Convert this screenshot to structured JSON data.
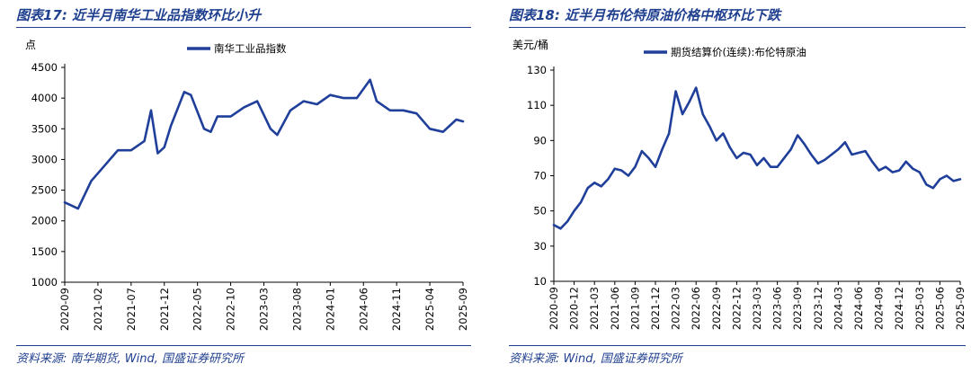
{
  "charts": [
    {
      "figure_title": "图表17: 近半月南华工业品指数环比小升",
      "source": "资料来源: 南华期货, Wind, 国盛证券研究所",
      "unit": "点",
      "legend": "南华工业品指数",
      "color": "#1f3f9a",
      "x_tick_labels": [
        "2020-09",
        "2021-02",
        "2021-07",
        "2021-12",
        "2022-05",
        "2022-10",
        "2023-03",
        "2023-08",
        "2024-01",
        "2024-06",
        "2024-11",
        "2025-04",
        "2025-09"
      ],
      "y_ticks": [
        1000,
        1500,
        2000,
        2500,
        3000,
        3500,
        4000,
        4500
      ]
    },
    {
      "figure_title": "图表18: 近半月布伦特原油价格中枢环比下跌",
      "source": "资料来源: Wind, 国盛证券研究所",
      "unit": "美元/桶",
      "legend": "期货结算价(连续):布伦特原油",
      "color": "#1f3f9a",
      "x_tick_labels": [
        "2020-09",
        "2020-12",
        "2021-03",
        "2021-06",
        "2021-09",
        "2021-12",
        "2022-03",
        "2022-06",
        "2022-09",
        "2022-12",
        "2023-03",
        "2023-06",
        "2023-09",
        "2023-12",
        "2024-03",
        "2024-06",
        "2024-09",
        "2024-12",
        "2025-03",
        "2025-06",
        "2025-09"
      ],
      "y_ticks": [
        10,
        30,
        50,
        70,
        90,
        110,
        130
      ]
    }
  ],
  "chart_data": [
    {
      "type": "line",
      "title": "南华工业品指数",
      "ylabel": "点",
      "ylim": [
        1000,
        4500
      ],
      "x": [
        "2020-09",
        "2020-11",
        "2021-01",
        "2021-03",
        "2021-05",
        "2021-07",
        "2021-09",
        "2021-10",
        "2021-11",
        "2021-12",
        "2022-01",
        "2022-03",
        "2022-04",
        "2022-06",
        "2022-07",
        "2022-08",
        "2022-10",
        "2022-12",
        "2023-02",
        "2023-04",
        "2023-05",
        "2023-07",
        "2023-09",
        "2023-11",
        "2024-01",
        "2024-03",
        "2024-05",
        "2024-06",
        "2024-07",
        "2024-08",
        "2024-10",
        "2024-12",
        "2025-02",
        "2025-04",
        "2025-06",
        "2025-08",
        "2025-09"
      ],
      "series": [
        {
          "name": "南华工业品指数",
          "values": [
            2300,
            2200,
            2650,
            2900,
            3150,
            3150,
            3300,
            3800,
            3100,
            3200,
            3550,
            4100,
            4050,
            3500,
            3450,
            3700,
            3700,
            3850,
            3950,
            3500,
            3400,
            3800,
            3950,
            3900,
            4050,
            4000,
            4000,
            4150,
            4300,
            3950,
            3800,
            3800,
            3750,
            3500,
            3450,
            3650,
            3620
          ]
        }
      ]
    },
    {
      "type": "line",
      "title": "期货结算价(连续):布伦特原油",
      "ylabel": "美元/桶",
      "ylim": [
        10,
        130
      ],
      "x": [
        "2020-09",
        "2020-10",
        "2020-11",
        "2020-12",
        "2021-01",
        "2021-02",
        "2021-03",
        "2021-04",
        "2021-05",
        "2021-06",
        "2021-07",
        "2021-08",
        "2021-09",
        "2021-10",
        "2021-11",
        "2021-12",
        "2022-01",
        "2022-02",
        "2022-03",
        "2022-04",
        "2022-05",
        "2022-06",
        "2022-07",
        "2022-08",
        "2022-09",
        "2022-10",
        "2022-11",
        "2022-12",
        "2023-01",
        "2023-02",
        "2023-03",
        "2023-04",
        "2023-05",
        "2023-06",
        "2023-07",
        "2023-08",
        "2023-09",
        "2023-10",
        "2023-11",
        "2023-12",
        "2024-01",
        "2024-02",
        "2024-03",
        "2024-04",
        "2024-05",
        "2024-06",
        "2024-07",
        "2024-08",
        "2024-09",
        "2024-10",
        "2024-11",
        "2024-12",
        "2025-01",
        "2025-02",
        "2025-03",
        "2025-04",
        "2025-05",
        "2025-06",
        "2025-07",
        "2025-08",
        "2025-09"
      ],
      "series": [
        {
          "name": "期货结算价(连续):布伦特原油",
          "values": [
            42,
            40,
            44,
            50,
            55,
            63,
            66,
            64,
            68,
            74,
            73,
            70,
            75,
            84,
            80,
            75,
            85,
            94,
            118,
            105,
            112,
            120,
            105,
            98,
            90,
            94,
            86,
            80,
            83,
            82,
            76,
            80,
            75,
            75,
            80,
            85,
            93,
            88,
            82,
            77,
            79,
            82,
            85,
            89,
            82,
            83,
            84,
            78,
            73,
            75,
            72,
            73,
            78,
            74,
            72,
            65,
            63,
            68,
            70,
            67,
            68
          ]
        }
      ]
    }
  ]
}
